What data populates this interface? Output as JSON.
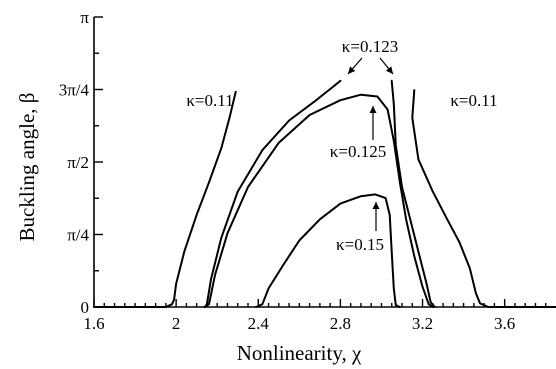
{
  "chart_data": {
    "type": "line",
    "xlabel": "Nonlinearity, χ",
    "ylabel": "Buckling angle, β",
    "xlim": [
      1.6,
      3.85
    ],
    "ylim": [
      0,
      3.1416
    ],
    "grid": false,
    "x_ticks": [
      {
        "value": 1.6,
        "label": "1.6"
      },
      {
        "value": 2.0,
        "label": "2"
      },
      {
        "value": 2.4,
        "label": "2.4"
      },
      {
        "value": 2.8,
        "label": "2.8"
      },
      {
        "value": 3.2,
        "label": "3.2"
      },
      {
        "value": 3.6,
        "label": "3.6"
      }
    ],
    "y_ticks": [
      {
        "value": 0,
        "label": "0"
      },
      {
        "value": 0.7854,
        "label": "π/4"
      },
      {
        "value": 1.5708,
        "label": "π/2"
      },
      {
        "value": 2.3562,
        "label": "3π/4"
      },
      {
        "value": 3.1416,
        "label": "π"
      }
    ],
    "series": [
      {
        "name": "κ=0.11",
        "points": [
          [
            1.6,
            0
          ],
          [
            1.95,
            0
          ],
          [
            1.98,
            0.03
          ],
          [
            1.99,
            0.08
          ],
          [
            2.0,
            0.25
          ],
          [
            2.04,
            0.6
          ],
          [
            2.1,
            1.0
          ],
          [
            2.16,
            1.35
          ],
          [
            2.22,
            1.72
          ],
          [
            2.26,
            2.05
          ],
          [
            2.29,
            2.33
          ]
        ]
      },
      {
        "name": "κ=0.11",
        "points": [
          [
            3.16,
            2.35
          ],
          [
            3.15,
            2.05
          ],
          [
            3.18,
            1.6
          ],
          [
            3.25,
            1.25
          ],
          [
            3.32,
            0.95
          ],
          [
            3.38,
            0.7
          ],
          [
            3.43,
            0.42
          ],
          [
            3.46,
            0.15
          ],
          [
            3.48,
            0.04
          ],
          [
            3.52,
            0
          ],
          [
            3.85,
            0
          ]
        ]
      },
      {
        "name": "κ=0.123",
        "points": [
          [
            2.14,
            0
          ],
          [
            2.15,
            0.03
          ],
          [
            2.17,
            0.3
          ],
          [
            2.22,
            0.75
          ],
          [
            2.3,
            1.25
          ],
          [
            2.42,
            1.7
          ],
          [
            2.55,
            2.02
          ],
          [
            2.67,
            2.22
          ],
          [
            2.75,
            2.36
          ],
          [
            2.8,
            2.45
          ]
        ]
      },
      {
        "name": "κ=0.123",
        "points": [
          [
            3.05,
            2.45
          ],
          [
            3.06,
            2.2
          ],
          [
            3.07,
            1.75
          ],
          [
            3.1,
            1.3
          ],
          [
            3.14,
            0.95
          ],
          [
            3.18,
            0.6
          ],
          [
            3.22,
            0.25
          ],
          [
            3.24,
            0.05
          ],
          [
            3.26,
            0
          ]
        ]
      },
      {
        "name": "κ=0.125",
        "points": [
          [
            2.14,
            0
          ],
          [
            2.16,
            0.03
          ],
          [
            2.19,
            0.35
          ],
          [
            2.25,
            0.8
          ],
          [
            2.35,
            1.3
          ],
          [
            2.5,
            1.78
          ],
          [
            2.65,
            2.08
          ],
          [
            2.8,
            2.24
          ],
          [
            2.9,
            2.3
          ],
          [
            2.98,
            2.28
          ],
          [
            3.03,
            2.14
          ],
          [
            3.06,
            1.8
          ],
          [
            3.09,
            1.35
          ],
          [
            3.12,
            0.95
          ],
          [
            3.16,
            0.55
          ],
          [
            3.2,
            0.22
          ],
          [
            3.23,
            0.03
          ],
          [
            3.25,
            0
          ]
        ]
      },
      {
        "name": "κ=0.15",
        "points": [
          [
            2.39,
            0
          ],
          [
            2.42,
            0.03
          ],
          [
            2.45,
            0.2
          ],
          [
            2.52,
            0.45
          ],
          [
            2.6,
            0.72
          ],
          [
            2.7,
            0.95
          ],
          [
            2.8,
            1.12
          ],
          [
            2.9,
            1.2
          ],
          [
            2.97,
            1.22
          ],
          [
            3.02,
            1.18
          ],
          [
            3.04,
            1.0
          ],
          [
            3.05,
            0.6
          ],
          [
            3.06,
            0.2
          ],
          [
            3.07,
            0.02
          ],
          [
            3.09,
            0
          ]
        ]
      }
    ],
    "annotations": {
      "k011_left": "κ=0.11",
      "k011_right": "κ=0.11",
      "k0123": "κ=0.123",
      "k0125": "κ=0.125",
      "k015": "κ=0.15"
    }
  }
}
